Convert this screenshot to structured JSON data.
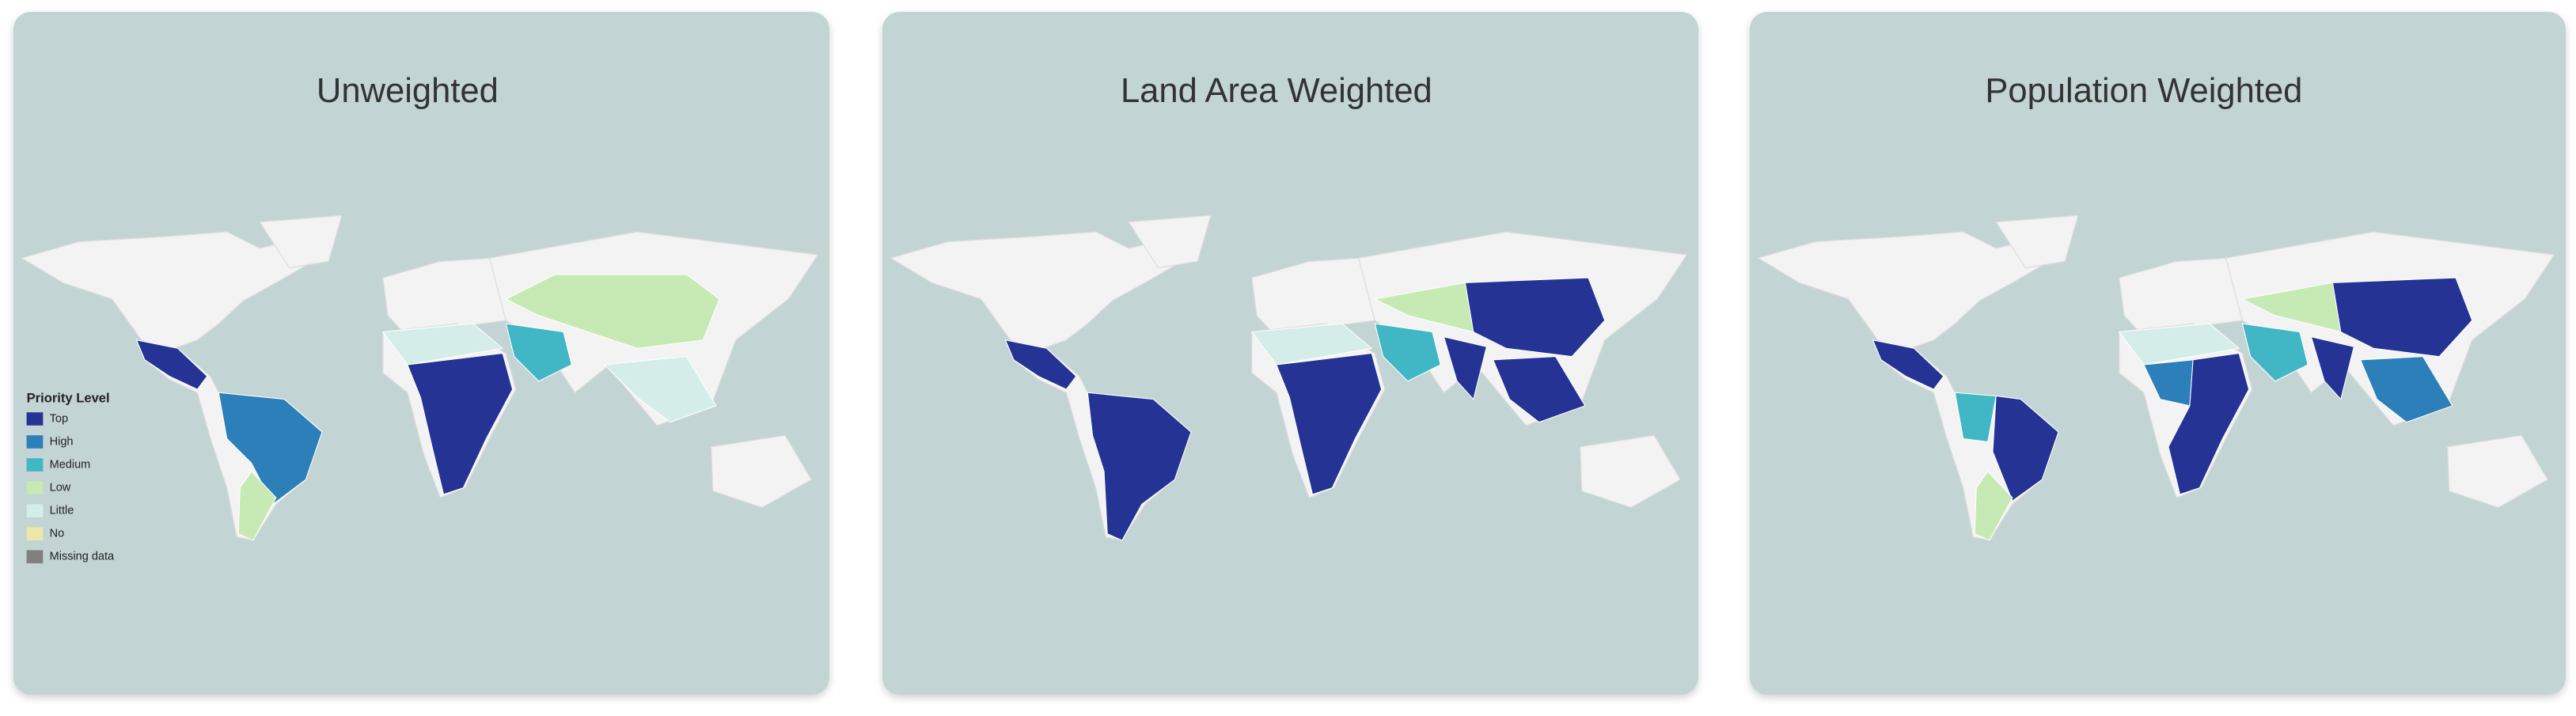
{
  "panels": [
    {
      "title": "Unweighted"
    },
    {
      "title": "Land Area Weighted"
    },
    {
      "title": "Population Weighted"
    }
  ],
  "legend": {
    "title": "Priority Level",
    "items": [
      {
        "label": "Top",
        "color": "#253494"
      },
      {
        "label": "High",
        "color": "#2c7fb8"
      },
      {
        "label": "Medium",
        "color": "#41b6c4"
      },
      {
        "label": "Low",
        "color": "#c7e9b4"
      },
      {
        "label": "Little",
        "color": "#d4ede8"
      },
      {
        "label": "No",
        "color": "#ede8a8"
      },
      {
        "label": "Missing data",
        "color": "#808080"
      }
    ]
  }
}
